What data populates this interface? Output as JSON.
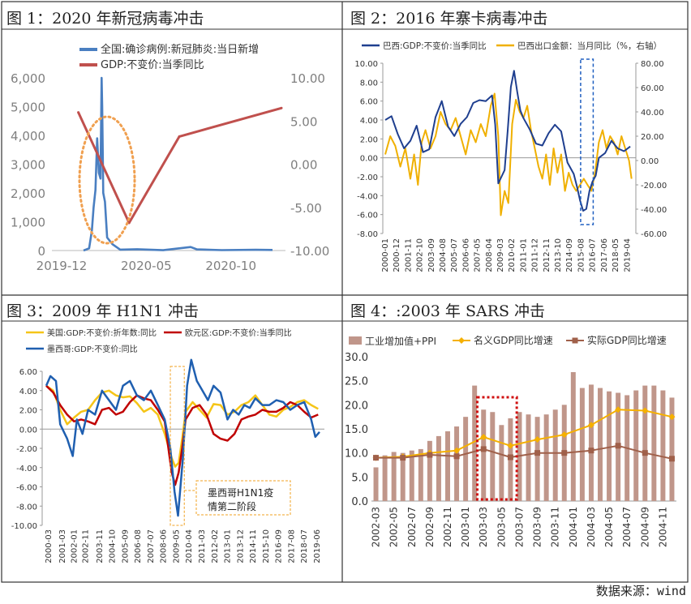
{
  "page": {
    "source": "数据来源：wind"
  },
  "chart_data": [
    {
      "id": "c1",
      "type": "line",
      "title": "图 1：2020 年新冠病毒冲击",
      "legend": [
        "全国:确诊病例:新冠肺炎:当日新增",
        "GDP:不变价:当季同比"
      ],
      "colors": {
        "cases": "#4a7fc1",
        "gdp": "#c0504d",
        "ellipse": "#f0a050"
      },
      "x_ticks": [
        "2019-12",
        "2020-05",
        "2020-10"
      ],
      "y_left": {
        "ticks": [
          "0",
          "1,000",
          "2,000",
          "3,000",
          "4,000",
          "5,000",
          "6,000"
        ],
        "min": 0,
        "max": 6000
      },
      "y_right": {
        "ticks": [
          "-10.00",
          "-5.00",
          "0.00",
          "5.00",
          "10.00"
        ],
        "min": -10,
        "max": 10
      },
      "series": [
        {
          "name": "全国:确诊病例:新冠肺炎:当日新增",
          "axis": "left",
          "x": [
            "2020-01-10",
            "2020-01-20",
            "2020-01-25",
            "2020-01-28",
            "2020-02-01",
            "2020-02-04",
            "2020-02-07",
            "2020-02-10",
            "2020-02-12",
            "2020-02-13",
            "2020-02-15",
            "2020-02-18",
            "2020-02-22",
            "2020-03-01",
            "2020-03-15",
            "2020-04-15",
            "2020-06-01",
            "2020-07-20",
            "2020-08-01",
            "2020-09-15",
            "2020-11-15",
            "2020-12-15"
          ],
          "values": [
            0,
            77,
            700,
            1500,
            2100,
            3900,
            2700,
            2500,
            6000,
            5000,
            2000,
            1700,
            450,
            220,
            30,
            45,
            10,
            120,
            40,
            15,
            25,
            20
          ]
        },
        {
          "name": "GDP:不变价:当季同比",
          "axis": "right",
          "x": [
            "2019-12-31",
            "2020-03-31",
            "2020-06-30",
            "2020-12-31"
          ],
          "values": [
            6.0,
            -6.8,
            3.2,
            6.5
          ]
        }
      ]
    },
    {
      "id": "c2",
      "type": "line",
      "title": "图 2：2016 年寨卡病毒冲击",
      "legend": [
        "巴西:GDP:不变价:当季同比",
        "巴西出口金额：当月同比（%，右轴）"
      ],
      "colors": {
        "gdp": "#1f3f8f",
        "exp": "#f0b000",
        "box": "#1f5fc0"
      },
      "x_ticks": [
        "2000-01",
        "2000-12",
        "2001-11",
        "2002-10",
        "2003-09",
        "2004-08",
        "2005-07",
        "2006-06",
        "2007-05",
        "2008-04",
        "2009-03",
        "2010-02",
        "2011-01",
        "2011-12",
        "2012-11",
        "2013-10",
        "2014-09",
        "2015-08",
        "2016-07",
        "2017-06",
        "2018-05",
        "2019-04"
      ],
      "y_left": {
        "ticks": [
          "-8.00",
          "-6.00",
          "-4.00",
          "-2.00",
          "0.00",
          "2.00",
          "4.00",
          "6.00",
          "8.00",
          "10.00"
        ],
        "min": -8,
        "max": 10
      },
      "y_right": {
        "ticks": [
          "-60.00",
          "-40.00",
          "-20.00",
          "0.00",
          "20.00",
          "40.00",
          "60.00",
          "80.00"
        ],
        "min": -60,
        "max": 80
      },
      "series": [
        {
          "name": "巴西:GDP:不变价:当季同比",
          "axis": "left",
          "t": [
            2000.0,
            2000.5,
            2001.0,
            2001.5,
            2002.0,
            2002.5,
            2003.0,
            2003.5,
            2004.0,
            2004.5,
            2005.0,
            2005.5,
            2006.0,
            2006.5,
            2007.0,
            2007.5,
            2008.0,
            2008.5,
            2008.75,
            2009.0,
            2009.25,
            2009.5,
            2009.75,
            2010.0,
            2010.25,
            2010.5,
            2010.75,
            2011.0,
            2011.5,
            2012.0,
            2012.5,
            2013.0,
            2013.5,
            2014.0,
            2014.5,
            2015.0,
            2015.25,
            2015.5,
            2015.75,
            2016.0,
            2016.25,
            2016.5,
            2016.75,
            2017.0,
            2017.5,
            2018.0,
            2018.5,
            2019.0,
            2019.5
          ],
          "values": [
            4.0,
            4.4,
            2.5,
            1.0,
            1.8,
            3.4,
            0.6,
            0.9,
            4.3,
            6.0,
            3.3,
            2.3,
            3.6,
            4.3,
            5.8,
            6.1,
            6.0,
            6.6,
            3.5,
            -2.7,
            -2.0,
            -1.3,
            3.0,
            7.5,
            9.2,
            7.0,
            5.0,
            4.2,
            3.0,
            1.5,
            1.3,
            2.6,
            3.5,
            2.8,
            -0.5,
            -1.7,
            -3.0,
            -4.5,
            -5.6,
            -5.4,
            -3.5,
            -2.5,
            -1.9,
            0.0,
            0.5,
            1.8,
            1.0,
            0.7,
            1.2
          ]
        },
        {
          "name": "巴西出口金额：当月同比（%，右轴）",
          "axis": "right",
          "t": [
            2000.0,
            2000.4,
            2000.8,
            2001.2,
            2001.6,
            2002.0,
            2002.3,
            2002.6,
            2002.9,
            2003.2,
            2003.6,
            2004.0,
            2004.4,
            2004.8,
            2005.2,
            2005.6,
            2006.0,
            2006.4,
            2006.8,
            2007.2,
            2007.6,
            2008.0,
            2008.4,
            2008.7,
            2009.0,
            2009.2,
            2009.5,
            2009.8,
            2010.1,
            2010.4,
            2010.7,
            2011.0,
            2011.3,
            2011.6,
            2011.9,
            2012.2,
            2012.5,
            2012.8,
            2013.1,
            2013.4,
            2013.7,
            2014.0,
            2014.3,
            2014.6,
            2014.9,
            2015.2,
            2015.5,
            2015.8,
            2016.1,
            2016.4,
            2016.7,
            2017.0,
            2017.3,
            2017.6,
            2017.9,
            2018.2,
            2018.5,
            2018.8,
            2019.1,
            2019.4,
            2019.6
          ],
          "values": [
            5,
            20,
            12,
            -5,
            10,
            -15,
            5,
            -20,
            15,
            25,
            10,
            20,
            40,
            30,
            25,
            35,
            20,
            5,
            25,
            15,
            30,
            20,
            45,
            55,
            20,
            -45,
            -25,
            -35,
            30,
            50,
            40,
            35,
            45,
            25,
            10,
            -5,
            -15,
            5,
            -20,
            10,
            -10,
            5,
            -25,
            -10,
            -20,
            -25,
            -20,
            -15,
            -20,
            -25,
            -10,
            15,
            25,
            10,
            20,
            15,
            5,
            20,
            10,
            0,
            -15
          ]
        }
      ]
    },
    {
      "id": "c3",
      "type": "line",
      "title": "图 3：2009 年 H1N1 冲击",
      "legend": [
        "美国:GDP:不变价:折年数:同比",
        "欧元区:GDP:不变价:当季同比",
        "墨西哥:GDP:不变价:同比"
      ],
      "annotation": "墨西哥H1N1疫情第二阶段",
      "colors": {
        "us": "#f5c518",
        "eu": "#c00000",
        "mx": "#1f5fb0",
        "box": "#f0a020"
      },
      "x_ticks": [
        "2000-03",
        "2001-03",
        "2002-01",
        "2002-11",
        "2003-11",
        "2004-10",
        "2005-09",
        "2006-08",
        "2007-07",
        "2008-06",
        "2009-05",
        "2010-04",
        "2011-03",
        "2012-02",
        "2013-01",
        "2013-12",
        "2014-11",
        "2015-10",
        "2016-09",
        "2017-08",
        "2018-07",
        "2019-06"
      ],
      "y": {
        "ticks": [
          "-10.00",
          "-8.00",
          "-6.00",
          "-4.00",
          "-2.00",
          "0.00",
          "2.00",
          "4.00",
          "6.00"
        ],
        "min": -10,
        "max": 6
      },
      "series": [
        {
          "name": "美国:GDP:不变价:折年数:同比",
          "t": [
            2000.0,
            2000.5,
            2001.0,
            2001.5,
            2002.0,
            2002.5,
            2003.0,
            2003.5,
            2004.0,
            2004.5,
            2005.0,
            2005.5,
            2006.0,
            2006.5,
            2007.0,
            2007.5,
            2008.0,
            2008.5,
            2009.0,
            2009.25,
            2009.5,
            2009.75,
            2010.0,
            2010.5,
            2011.0,
            2011.5,
            2012.0,
            2012.5,
            2013.0,
            2013.5,
            2014.0,
            2014.5,
            2015.0,
            2015.5,
            2016.0,
            2016.5,
            2017.0,
            2017.5,
            2018.0,
            2018.5,
            2019.0,
            2019.5
          ],
          "values": [
            4.5,
            4.0,
            2.0,
            0.5,
            1.2,
            1.8,
            2.0,
            3.0,
            3.8,
            4.0,
            3.5,
            3.3,
            3.4,
            2.7,
            1.8,
            2.2,
            1.5,
            -0.5,
            -3.0,
            -3.9,
            -3.5,
            -1.0,
            1.8,
            2.8,
            2.0,
            1.2,
            2.6,
            2.5,
            1.5,
            1.8,
            2.5,
            2.8,
            3.5,
            2.5,
            1.5,
            1.3,
            2.0,
            2.3,
            2.8,
            3.0,
            2.5,
            2.1
          ]
        },
        {
          "name": "欧元区:GDP:不变价:当季同比",
          "t": [
            2000.0,
            2000.5,
            2001.0,
            2001.5,
            2002.0,
            2002.5,
            2003.0,
            2003.5,
            2004.0,
            2004.5,
            2005.0,
            2005.5,
            2006.0,
            2006.5,
            2007.0,
            2007.5,
            2008.0,
            2008.5,
            2009.0,
            2009.25,
            2009.5,
            2009.75,
            2010.0,
            2010.5,
            2011.0,
            2011.5,
            2012.0,
            2012.5,
            2013.0,
            2013.5,
            2014.0,
            2014.5,
            2015.0,
            2015.5,
            2016.0,
            2016.5,
            2017.0,
            2017.5,
            2018.0,
            2018.5,
            2019.0,
            2019.5
          ],
          "values": [
            4.5,
            3.8,
            2.5,
            1.5,
            0.8,
            1.0,
            0.8,
            0.5,
            2.0,
            2.2,
            1.5,
            1.8,
            2.8,
            3.5,
            3.2,
            3.0,
            2.0,
            0.8,
            -4.5,
            -5.8,
            -4.5,
            -2.0,
            1.0,
            2.2,
            2.5,
            1.5,
            -0.5,
            -1.0,
            -1.2,
            -0.5,
            1.0,
            1.3,
            1.5,
            2.0,
            1.8,
            1.8,
            2.2,
            2.8,
            2.5,
            1.8,
            1.2,
            1.5
          ]
        },
        {
          "name": "墨西哥:GDP:不变价:同比",
          "t": [
            2000.0,
            2000.3,
            2000.7,
            2001.0,
            2001.5,
            2001.9,
            2002.2,
            2002.6,
            2003.0,
            2003.5,
            2004.0,
            2004.5,
            2005.0,
            2005.5,
            2006.0,
            2006.5,
            2007.0,
            2007.5,
            2008.0,
            2008.5,
            2008.9,
            2009.2,
            2009.45,
            2009.8,
            2010.1,
            2010.4,
            2010.8,
            2011.2,
            2011.6,
            2012.0,
            2012.5,
            2013.0,
            2013.4,
            2013.8,
            2014.2,
            2014.6,
            2015.0,
            2015.5,
            2016.0,
            2016.5,
            2017.0,
            2017.5,
            2018.0,
            2018.5,
            2019.0,
            2019.3,
            2019.6
          ],
          "values": [
            4.5,
            5.5,
            5.0,
            0.5,
            -1.0,
            -2.8,
            1.0,
            -0.5,
            2.0,
            1.5,
            4.0,
            3.0,
            2.0,
            4.5,
            5.0,
            3.5,
            3.0,
            4.0,
            2.5,
            1.0,
            -2.0,
            -6.5,
            -9.0,
            -3.0,
            4.5,
            7.2,
            5.0,
            4.0,
            3.0,
            4.5,
            3.8,
            1.0,
            2.0,
            1.5,
            2.5,
            2.2,
            3.2,
            2.5,
            2.5,
            3.0,
            2.8,
            2.0,
            2.5,
            2.8,
            1.0,
            -0.8,
            -0.3
          ]
        }
      ]
    },
    {
      "id": "c4",
      "type": "bar",
      "title": "图 4：:2003 年 SARS 冲击",
      "legend": [
        "工业增加值+PPI",
        "名义GDP同比增速",
        "实际GDP同比增速"
      ],
      "colors": {
        "bar": "#c0968a",
        "nominal": "#f5b000",
        "real": "#a0604a",
        "box": "#d01010"
      },
      "categories": [
        "2002-03",
        "2002-04",
        "2002-05",
        "2002-06",
        "2002-07",
        "2002-08",
        "2002-09",
        "2002-10",
        "2002-11",
        "2002-12",
        "2003-01",
        "2003-02",
        "2003-03",
        "2003-04",
        "2003-05",
        "2003-06",
        "2003-07",
        "2003-08",
        "2003-09",
        "2003-10",
        "2003-11",
        "2003-12",
        "2004-01",
        "2004-02",
        "2004-03",
        "2004-04",
        "2004-05",
        "2004-06",
        "2004-07",
        "2004-08",
        "2004-09",
        "2004-10",
        "2004-11",
        "2004-12"
      ],
      "x_ticks": [
        "2002-03",
        "2002-05",
        "2002-07",
        "2002-09",
        "2002-11",
        "2003-01",
        "2003-03",
        "2003-05",
        "2003-07",
        "2003-09",
        "2003-11",
        "2004-01",
        "2004-03",
        "2004-05",
        "2004-07",
        "2004-09",
        "2004-11"
      ],
      "y": {
        "ticks": [
          "0.0",
          "5.0",
          "10.0",
          "15.0",
          "20.0",
          "25.0",
          "30.0"
        ],
        "min": 0,
        "max": 30
      },
      "bars": [
        7.0,
        9.5,
        10.2,
        10.0,
        10.5,
        10.8,
        12.5,
        13.5,
        14.5,
        15.5,
        17.5,
        24.0,
        19.0,
        18.5,
        15.8,
        17.2,
        18.5,
        18.0,
        17.5,
        18.0,
        19.0,
        20.0,
        26.8,
        23.5,
        24.2,
        23.5,
        22.8,
        22.5,
        22.0,
        23.0,
        24.0,
        24.0,
        23.0,
        21.5
      ],
      "nominal_x": [
        "2002-03",
        "2002-06",
        "2002-09",
        "2002-12",
        "2003-03",
        "2003-06",
        "2003-09",
        "2003-12",
        "2004-03",
        "2004-06",
        "2004-09",
        "2004-12"
      ],
      "nominal": [
        9.0,
        9.2,
        10.0,
        10.5,
        13.3,
        11.5,
        12.8,
        13.8,
        15.8,
        19.0,
        18.8,
        17.5
      ],
      "real": [
        9.0,
        9.0,
        9.6,
        9.3,
        10.8,
        9.1,
        10.0,
        10.0,
        10.5,
        11.5,
        10.0,
        8.8
      ],
      "highlight": [
        "2003-03",
        "2003-06"
      ]
    }
  ]
}
